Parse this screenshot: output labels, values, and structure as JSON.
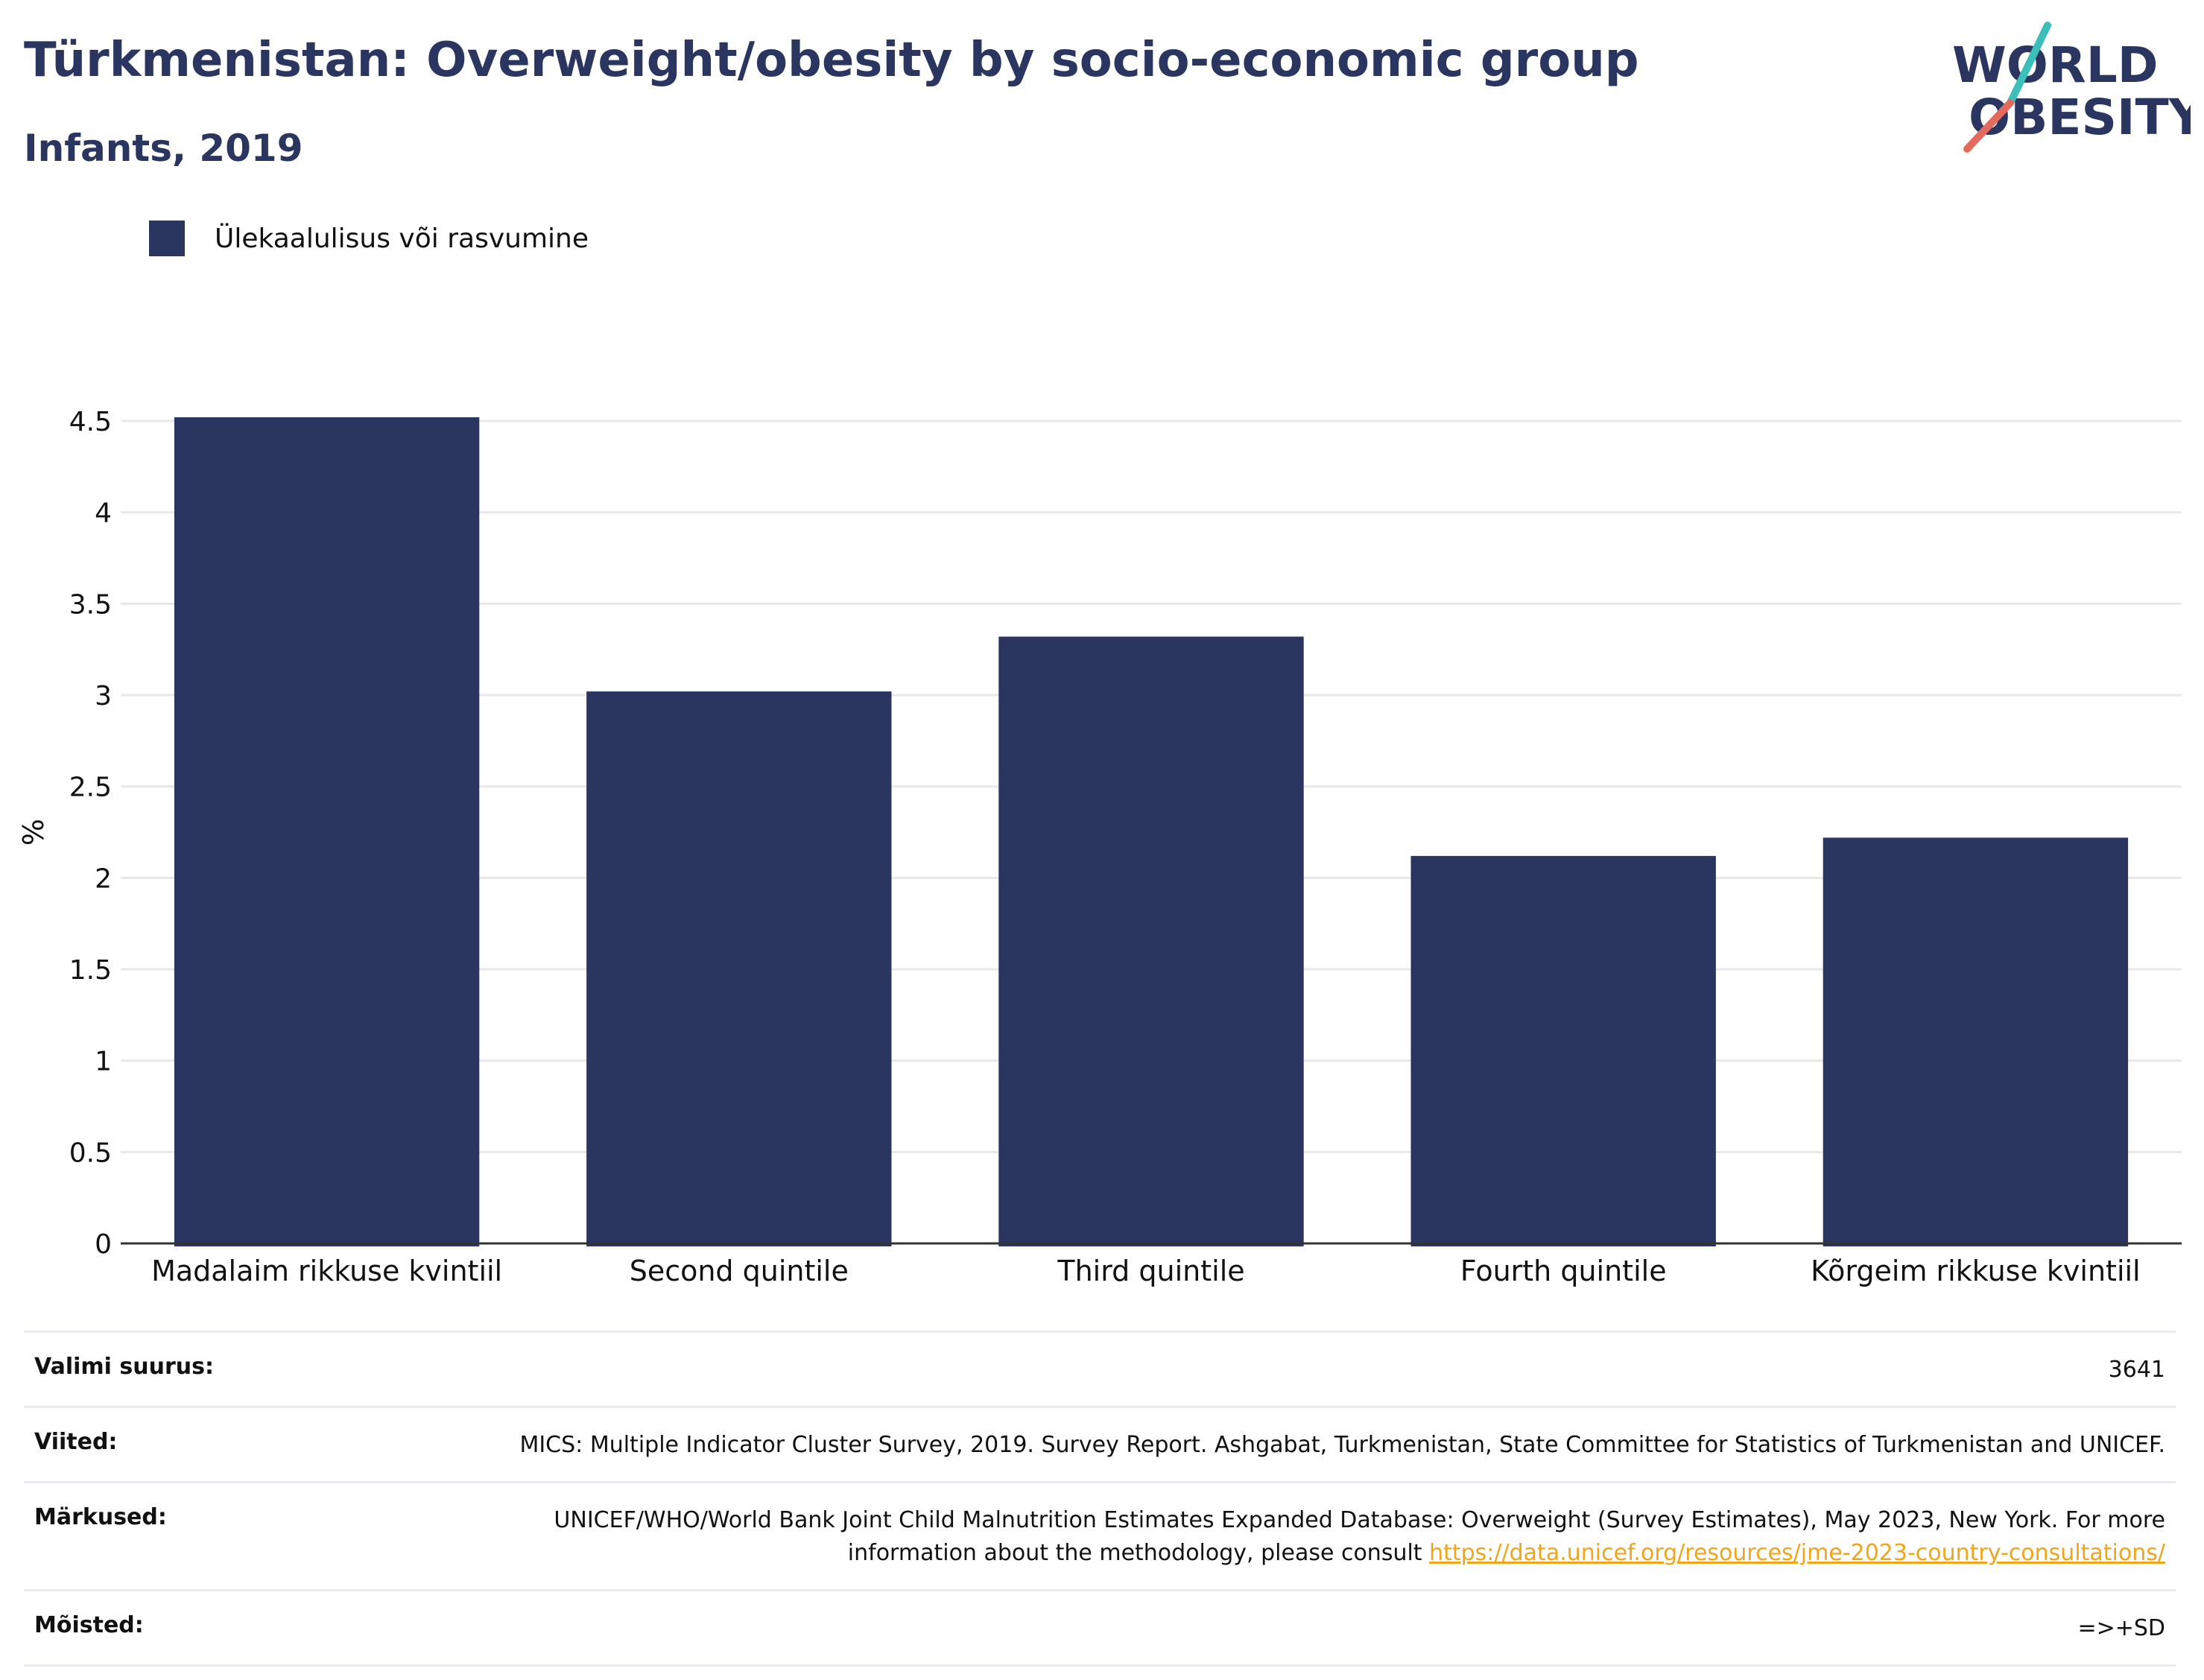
{
  "title": "Türkmenistan: Overweight/obesity by socio-economic group",
  "subtitle": "Infants, 2019",
  "logo": {
    "line1": "WORLD",
    "line2": "OBESITY",
    "colors": [
      "#2a3560",
      "#e36b5e",
      "#3bbfb8"
    ]
  },
  "chart_data": {
    "type": "bar",
    "categories": [
      "Madalaim rikkuse kvintiil",
      "Second quintile",
      "Third quintile",
      "Fourth quintile",
      "Kõrgeim rikkuse kvintiil"
    ],
    "series": [
      {
        "name": "Ülekaalulisus või rasvumine",
        "values": [
          4.52,
          3.02,
          3.32,
          2.12,
          2.22
        ],
        "color": "#2a3560"
      }
    ],
    "ylabel": "%",
    "ylim": [
      0,
      4.5
    ],
    "yticks": [
      0,
      0.5,
      1,
      1.5,
      2,
      2.5,
      3,
      3.5,
      4,
      4.5
    ],
    "ytick_labels": [
      "0",
      "0.5",
      "1",
      "1.5",
      "2",
      "2.5",
      "3",
      "3.5",
      "4",
      "4.5"
    ],
    "grid": true,
    "legend": "top-left"
  },
  "footer": {
    "sample_label": "Valimi suurus:",
    "sample_value": "3641",
    "refs_label": "Viited:",
    "refs_value": "MICS: Multiple Indicator Cluster Survey, 2019. Survey Report. Ashgabat, Turkmenistan, State Committee for Statistics of Turkmenistan and UNICEF.",
    "notes_label": "Märkused:",
    "notes_text": "UNICEF/WHO/World Bank Joint Child Malnutrition Estimates Expanded Database: Overweight (Survey Estimates), May 2023, New York. For more information about the methodology, please consult ",
    "notes_link": "https://data.unicef.org/resources/jme-2023-country-consultations/",
    "defs_label": "Mõisted:",
    "defs_value": "=>+SD"
  }
}
